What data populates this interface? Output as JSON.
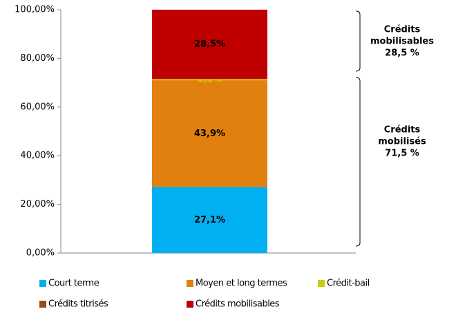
{
  "chart_data": {
    "type": "stacked-bar",
    "categories": [
      null
    ],
    "series": [
      {
        "name": "Court terme",
        "color": "#00b0f0",
        "label_color": "#000000",
        "values": [
          27.1
        ],
        "value_labels": [
          "27,1%"
        ]
      },
      {
        "name": "Moyen et long termes",
        "color": "#e2800f",
        "label_color": "#000000",
        "values": [
          43.9
        ],
        "value_labels": [
          "43,9%"
        ]
      },
      {
        "name": "Crédit-bail",
        "color": "#cccc00",
        "label_color": "#cccc00",
        "values": [
          0.5
        ],
        "value_labels": [
          "0,5%"
        ]
      },
      {
        "name": "Crédits titrisés",
        "color": "#9c4a13",
        "values": [
          0
        ]
      },
      {
        "name": "Crédits mobilisables",
        "color": "#c00000",
        "label_color": "#000000",
        "values": [
          28.5
        ],
        "value_labels": [
          "28,5%"
        ]
      }
    ],
    "ylim": [
      0,
      100
    ],
    "yticks": [
      {
        "value": 0,
        "label": "0,00%"
      },
      {
        "value": 20,
        "label": "20,00%"
      },
      {
        "value": 40,
        "label": "40,00%"
      },
      {
        "value": 60,
        "label": "60,00%"
      },
      {
        "value": 80,
        "label": "80,00%"
      },
      {
        "value": 100,
        "label": "100,00%"
      }
    ],
    "annotations": [
      {
        "lines": [
          "Crédits",
          "mobilisables",
          "28,5 %"
        ]
      },
      {
        "lines": [
          "Crédits",
          "mobilisés",
          "71,5 %"
        ]
      }
    ]
  }
}
